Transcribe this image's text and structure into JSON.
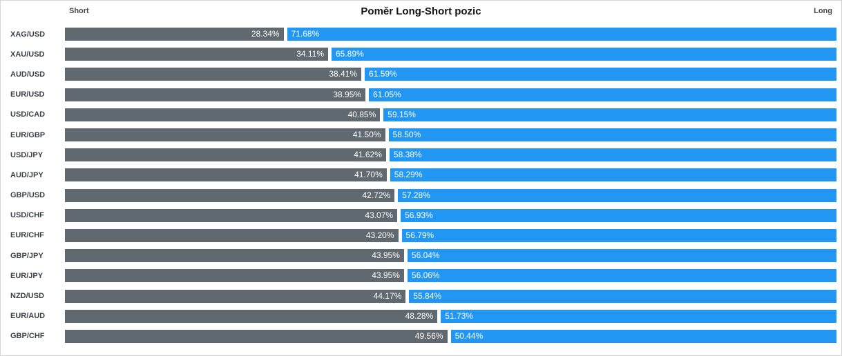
{
  "chart": {
    "title": "Poměr Long-Short pozic",
    "short_header": "Short",
    "long_header": "Long",
    "short_color": "#616970",
    "long_color": "#2196f3"
  },
  "chart_data": {
    "type": "bar",
    "orientation": "horizontal-stacked",
    "title": "Poměr Long-Short pozic",
    "xlabel": "",
    "ylabel": "",
    "value_format": "percent",
    "legend_position": "top-edges",
    "grid": false,
    "categories": [
      "XAG/USD",
      "XAU/USD",
      "AUD/USD",
      "EUR/USD",
      "USD/CAD",
      "EUR/GBP",
      "USD/JPY",
      "AUD/JPY",
      "GBP/USD",
      "USD/CHF",
      "EUR/CHF",
      "GBP/JPY",
      "EUR/JPY",
      "NZD/USD",
      "EUR/AUD",
      "GBP/CHF"
    ],
    "series": [
      {
        "name": "Short",
        "color": "#616970",
        "values": [
          28.34,
          34.11,
          38.41,
          38.95,
          40.85,
          41.5,
          41.62,
          41.7,
          42.72,
          43.07,
          43.2,
          43.95,
          43.95,
          44.17,
          48.28,
          49.56
        ]
      },
      {
        "name": "Long",
        "color": "#2196f3",
        "values": [
          71.68,
          65.89,
          61.59,
          61.05,
          59.15,
          58.5,
          58.38,
          58.29,
          57.28,
          56.93,
          56.79,
          56.04,
          56.06,
          55.84,
          51.73,
          50.44
        ]
      }
    ]
  }
}
